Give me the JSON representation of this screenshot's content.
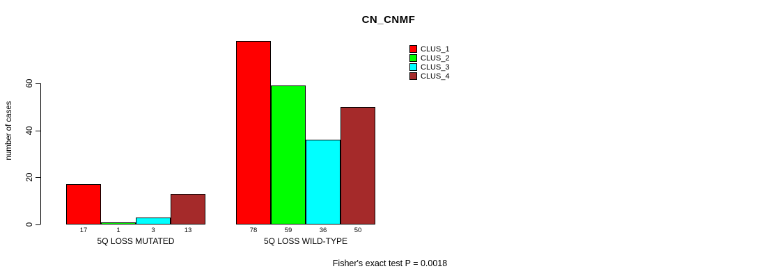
{
  "chart_data": {
    "type": "bar",
    "title": "CN_CNMF",
    "xlabel": "",
    "ylabel": "number of cases",
    "categories": [
      "5Q LOSS MUTATED",
      "5Q LOSS WILD-TYPE"
    ],
    "series": [
      {
        "name": "CLUS_1",
        "color": "#ff0000",
        "values": [
          17,
          78
        ]
      },
      {
        "name": "CLUS_2",
        "color": "#00ff00",
        "values": [
          1,
          59
        ]
      },
      {
        "name": "CLUS_3",
        "color": "#00ffff",
        "values": [
          3,
          36
        ]
      },
      {
        "name": "CLUS_4",
        "color": "#a52a2a",
        "values": [
          13,
          50
        ]
      }
    ],
    "yticks": [
      0,
      20,
      40,
      60
    ],
    "ylim": [
      0,
      80
    ],
    "grid": false,
    "legend_position": "top-right",
    "bar_value_labels": true,
    "annotation": "Fisher's exact test P = 0.0018"
  }
}
